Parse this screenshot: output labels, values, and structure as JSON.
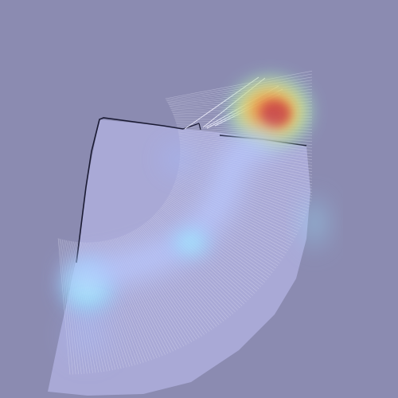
{
  "visualization": {
    "kind": "lidar-scan-heatmap",
    "background_color": "#8b8bb1",
    "free_space_color": "#a9a9d6",
    "obstacle_outline_color": "#1a1a33",
    "ray_color": "#d8d8ee",
    "heatmap_colormap": [
      "#7fd7ff",
      "#7ee0ff",
      "#9ff0c0",
      "#e8f07a",
      "#f7b04a",
      "#e8503a"
    ],
    "hotspots": [
      {
        "label": "",
        "intensity": 1.0
      },
      {
        "label": "",
        "intensity": 0.55
      },
      {
        "label": "",
        "intensity": 0.45
      },
      {
        "label": "",
        "intensity": 0.35
      }
    ]
  }
}
